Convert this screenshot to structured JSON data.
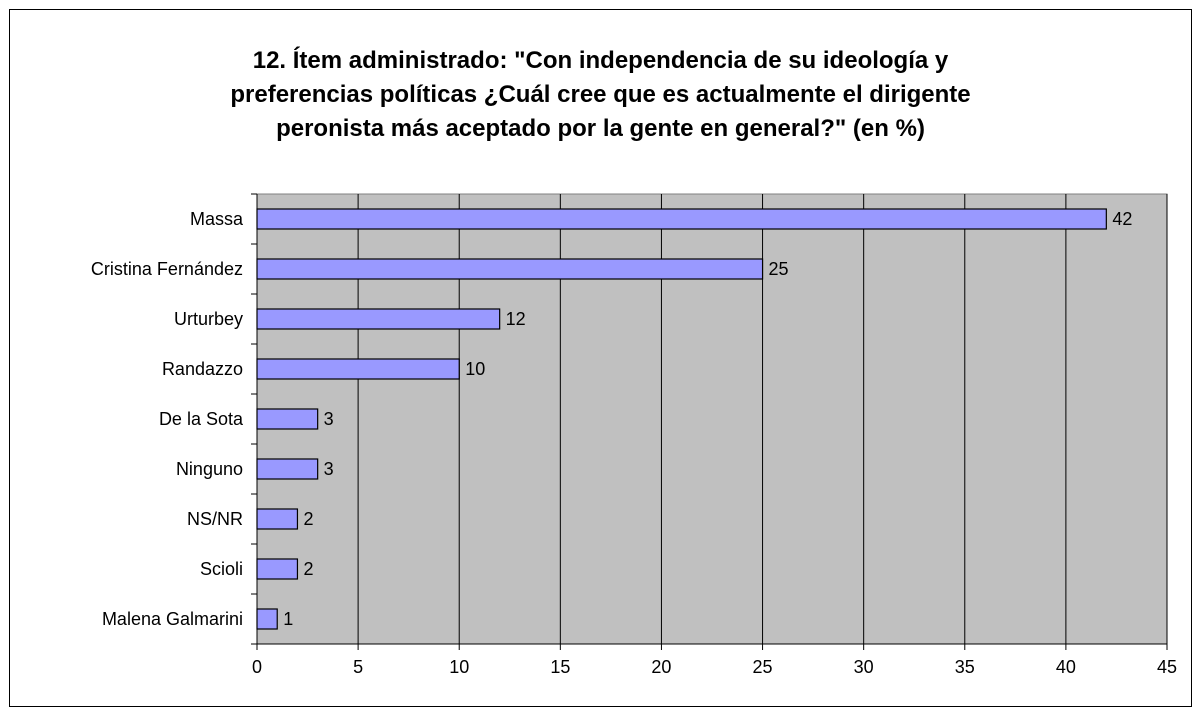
{
  "chart_data": {
    "type": "bar",
    "orientation": "horizontal",
    "title_lines": [
      "12. Ítem administrado: \"Con independencia de su ideología y",
      "preferencias políticas ¿Cuál cree que es actualmente el dirigente",
      "peronista más aceptado por la gente en general?\" (en %)"
    ],
    "categories": [
      "Massa",
      "Cristina Fernández",
      "Urturbey",
      "Randazzo",
      "De la Sota",
      "Ninguno",
      "NS/NR",
      "Scioli",
      "Malena Galmarini"
    ],
    "values": [
      42,
      25,
      12,
      10,
      3,
      3,
      2,
      2,
      1
    ],
    "xlim": [
      0,
      45
    ],
    "xticks": [
      "0",
      "5",
      "10",
      "15",
      "20",
      "25",
      "30",
      "35",
      "40",
      "45"
    ],
    "grid": "vertical",
    "colors": {
      "bar_fill": "#9999ff",
      "bar_stroke": "#000000",
      "plot_bg": "#c0c0c0",
      "gridline": "#000000"
    }
  }
}
